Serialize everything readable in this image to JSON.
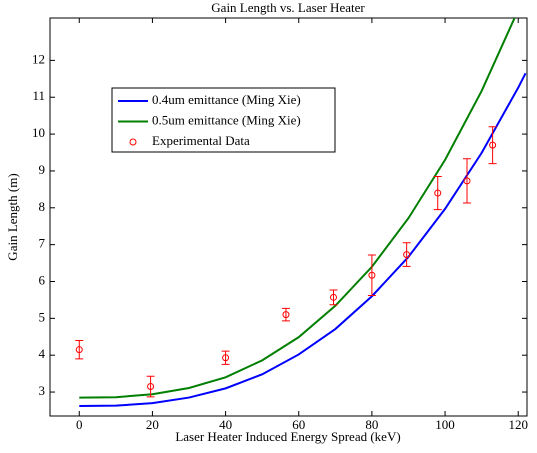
{
  "chart_data": {
    "type": "line",
    "title": "Gain Length vs. Laser Heater",
    "x_label": "Laser Heater Induced Energy Spread (keV)",
    "y_label": "Gain Length (m)",
    "xlim": [
      -8,
      122.4
    ],
    "ylim": [
      2.35,
      13.15
    ],
    "xticks": [
      0,
      20,
      40,
      60,
      80,
      100,
      120
    ],
    "yticks": [
      3,
      4,
      5,
      6,
      7,
      8,
      9,
      10,
      11,
      12
    ],
    "legend": "upper-left",
    "series": [
      {
        "name": "0.4um emittance (Ming Xie)",
        "color": "#0000ff",
        "style": "line",
        "x": [
          0,
          10,
          20,
          30,
          40,
          50,
          60,
          70,
          80,
          90,
          100,
          110,
          120,
          122
        ],
        "values": [
          2.62,
          2.63,
          2.7,
          2.85,
          3.1,
          3.48,
          4.02,
          4.71,
          5.6,
          6.67,
          7.97,
          9.49,
          11.26,
          11.65
        ]
      },
      {
        "name": "0.5um emittance (Ming Xie)",
        "color": "#007f00",
        "style": "line",
        "x": [
          0,
          10,
          20,
          30,
          40,
          50,
          60,
          70,
          80,
          90,
          100,
          110,
          119
        ],
        "values": [
          2.85,
          2.86,
          2.94,
          3.11,
          3.4,
          3.86,
          4.49,
          5.34,
          6.4,
          7.72,
          9.3,
          11.17,
          13.15
        ]
      },
      {
        "name": "Experimental Data",
        "color": "#ff0000",
        "style": "errorbar",
        "x": [
          0,
          19.5,
          40,
          56.5,
          69.5,
          80,
          89.5,
          98,
          106,
          113
        ],
        "values": [
          4.15,
          3.15,
          3.93,
          5.1,
          5.57,
          6.17,
          6.73,
          8.4,
          8.73,
          9.7
        ],
        "errors": [
          0.25,
          0.28,
          0.18,
          0.17,
          0.2,
          0.55,
          0.32,
          0.45,
          0.6,
          0.5
        ]
      }
    ]
  }
}
